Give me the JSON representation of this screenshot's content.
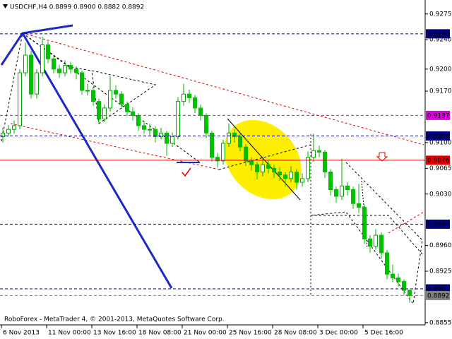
{
  "chart_data": {
    "type": "candlestick",
    "title": "USDCHF,H4  0.8899 0.8900 0.8882 0.8892",
    "note": "RoboForex - MetaTrader 4, © 2001-2013, MetaQuotes Software Corp.",
    "up_color": "#00a800",
    "down_color": "#00c000",
    "ohlc": [
      [
        0.9108,
        0.912,
        0.91,
        0.9113
      ],
      [
        0.9113,
        0.9124,
        0.9108,
        0.9118
      ],
      [
        0.9118,
        0.913,
        0.9112,
        0.9123
      ],
      [
        0.9123,
        0.92,
        0.9118,
        0.9195
      ],
      [
        0.9195,
        0.9236,
        0.919,
        0.9219
      ],
      [
        0.9219,
        0.9225,
        0.916,
        0.9166
      ],
      [
        0.9166,
        0.92,
        0.916,
        0.9195
      ],
      [
        0.9195,
        0.9244,
        0.919,
        0.9233
      ],
      [
        0.9233,
        0.9238,
        0.9208,
        0.9214
      ],
      [
        0.9214,
        0.9218,
        0.9194,
        0.92
      ],
      [
        0.92,
        0.9206,
        0.9188,
        0.9195
      ],
      [
        0.9195,
        0.9212,
        0.919,
        0.9205
      ],
      [
        0.9205,
        0.921,
        0.9194,
        0.92
      ],
      [
        0.92,
        0.9204,
        0.9186,
        0.9195
      ],
      [
        0.9195,
        0.9198,
        0.9165,
        0.9171
      ],
      [
        0.9171,
        0.918,
        0.9164,
        0.9171
      ],
      [
        0.9171,
        0.9176,
        0.915,
        0.9156
      ],
      [
        0.9156,
        0.916,
        0.9126,
        0.9132
      ],
      [
        0.9132,
        0.9152,
        0.9128,
        0.9147
      ],
      [
        0.9147,
        0.919,
        0.9142,
        0.9171
      ],
      [
        0.9171,
        0.9178,
        0.916,
        0.9166
      ],
      [
        0.9166,
        0.917,
        0.9146,
        0.9152
      ],
      [
        0.9152,
        0.9156,
        0.9136,
        0.9142
      ],
      [
        0.9142,
        0.9148,
        0.913,
        0.9137
      ],
      [
        0.9137,
        0.914,
        0.9116,
        0.9123
      ],
      [
        0.9123,
        0.913,
        0.9112,
        0.9118
      ],
      [
        0.9118,
        0.9126,
        0.911,
        0.9118
      ],
      [
        0.9118,
        0.9122,
        0.91,
        0.9108
      ],
      [
        0.9108,
        0.912,
        0.9104,
        0.9113
      ],
      [
        0.9113,
        0.9116,
        0.9082,
        0.9099
      ],
      [
        0.9099,
        0.9114,
        0.9094,
        0.9108
      ],
      [
        0.9108,
        0.9162,
        0.9104,
        0.9156
      ],
      [
        0.9156,
        0.918,
        0.915,
        0.9166
      ],
      [
        0.9166,
        0.9172,
        0.9154,
        0.9161
      ],
      [
        0.9161,
        0.9165,
        0.914,
        0.9147
      ],
      [
        0.9147,
        0.9152,
        0.913,
        0.9137
      ],
      [
        0.9137,
        0.914,
        0.9106,
        0.9113
      ],
      [
        0.9113,
        0.9116,
        0.9074,
        0.908
      ],
      [
        0.908,
        0.9086,
        0.9066,
        0.9075
      ],
      [
        0.9075,
        0.9104,
        0.907,
        0.9099
      ],
      [
        0.9099,
        0.9126,
        0.9094,
        0.9113
      ],
      [
        0.9113,
        0.9118,
        0.91,
        0.9108
      ],
      [
        0.9108,
        0.9112,
        0.9088,
        0.9094
      ],
      [
        0.9094,
        0.9098,
        0.9068,
        0.9075
      ],
      [
        0.9075,
        0.908,
        0.9062,
        0.907
      ],
      [
        0.907,
        0.9074,
        0.905,
        0.906
      ],
      [
        0.906,
        0.9078,
        0.9054,
        0.907
      ],
      [
        0.907,
        0.9076,
        0.9058,
        0.9065
      ],
      [
        0.9065,
        0.907,
        0.9052,
        0.906
      ],
      [
        0.906,
        0.9066,
        0.9048,
        0.9056
      ],
      [
        0.9056,
        0.906,
        0.904,
        0.9051
      ],
      [
        0.9051,
        0.9068,
        0.9046,
        0.906
      ],
      [
        0.906,
        0.9064,
        0.9036,
        0.9046
      ],
      [
        0.9046,
        0.9058,
        0.904,
        0.9051
      ],
      [
        0.9051,
        0.9088,
        0.9046,
        0.908
      ],
      [
        0.908,
        0.9112,
        0.9074,
        0.9089
      ],
      [
        0.9089,
        0.9096,
        0.908,
        0.9087
      ],
      [
        0.9087,
        0.909,
        0.9052,
        0.906
      ],
      [
        0.906,
        0.9064,
        0.9028,
        0.9036
      ],
      [
        0.9036,
        0.904,
        0.9018,
        0.9027
      ],
      [
        0.9027,
        0.9078,
        0.9022,
        0.9041
      ],
      [
        0.9041,
        0.9046,
        0.9028,
        0.9036
      ],
      [
        0.9036,
        0.904,
        0.901,
        0.9017
      ],
      [
        0.9017,
        0.9044,
        0.9004,
        0.9012
      ],
      [
        0.9012,
        0.9016,
        0.8962,
        0.8969
      ],
      [
        0.8969,
        0.8974,
        0.895,
        0.8959
      ],
      [
        0.8959,
        0.8982,
        0.8954,
        0.8974
      ],
      [
        0.8974,
        0.8978,
        0.8942,
        0.895
      ],
      [
        0.895,
        0.8954,
        0.8914,
        0.8921
      ],
      [
        0.8921,
        0.8934,
        0.891,
        0.8916
      ],
      [
        0.8916,
        0.8922,
        0.8904,
        0.8911
      ],
      [
        0.8911,
        0.8914,
        0.8892,
        0.8899
      ],
      [
        0.8899,
        0.89,
        0.8882,
        0.8892
      ]
    ],
    "xlim": [
      0,
      75
    ],
    "xticks": [
      {
        "value": 0,
        "label": "6 Nov 2013"
      },
      {
        "value": 8,
        "label": "11 Nov 00:00"
      },
      {
        "value": 16,
        "label": "13 Nov 16:00"
      },
      {
        "value": 24,
        "label": "18 Nov 08:00"
      },
      {
        "value": 32,
        "label": "21 Nov 00:00"
      },
      {
        "value": 40,
        "label": "25 Nov 16:00"
      },
      {
        "value": 48,
        "label": "28 Nov 08:00"
      },
      {
        "value": 56,
        "label": "3 Dec 00:00"
      },
      {
        "value": 64,
        "label": "5 Dec 16:00"
      }
    ],
    "ylim": [
      0.8852,
      0.9294
    ],
    "yticks": [
      0.9275,
      {
        "value": 0.924,
        "label": "0.9240"
      },
      {
        "value": 0.92,
        "label": "0.9200"
      },
      {
        "value": 0.917,
        "label": "0.9170"
      },
      {
        "value": 0.91,
        "label": "0.9100"
      },
      0.9065,
      {
        "value": 0.903,
        "label": "0.9030"
      },
      {
        "value": 0.896,
        "label": "0.8960"
      },
      0.8925,
      0.8855
    ],
    "levels": [
      {
        "value": 0.9248,
        "color": "#000080",
        "dash": true
      },
      {
        "value": 0.9137,
        "color": "#e000e0",
        "dash": true
      },
      {
        "value": 0.9109,
        "color": "#000080",
        "dash": true
      },
      {
        "value": 0.9076,
        "color": "#e00000",
        "dash": false
      },
      {
        "value": 0.8989,
        "color": "#000080",
        "dash": true
      },
      {
        "value": 0.8901,
        "color": "#000080",
        "dash": true
      },
      {
        "value": 0.8892,
        "color": "#808080",
        "dash": true
      }
    ]
  }
}
